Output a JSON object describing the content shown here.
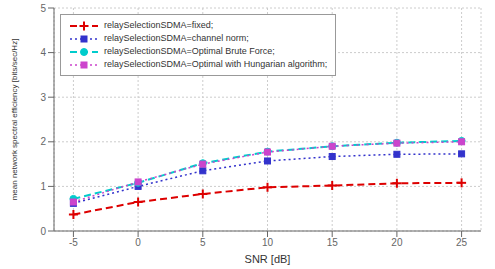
{
  "chart_data": {
    "type": "line",
    "x": [
      -5,
      0,
      5,
      10,
      15,
      20,
      25
    ],
    "xlabel": "SNR [dB]",
    "ylabel": "mean network spectral efficiency [bits/sec/Hz]",
    "xlim": [
      -6.5,
      26.5
    ],
    "xticks": [
      -5,
      0,
      5,
      10,
      15,
      20,
      25
    ],
    "ylim": [
      0,
      5
    ],
    "yticks": [
      0,
      1,
      2,
      3,
      4,
      5
    ],
    "grid": true,
    "legend": "upper left",
    "series": [
      {
        "name": "relaySelectionSDMA=fixed;",
        "color": "#dd0000",
        "marker": "plus",
        "line_style": "dashed",
        "values": [
          0.37,
          0.65,
          0.83,
          0.98,
          1.02,
          1.07,
          1.08
        ]
      },
      {
        "name": "relaySelectionSDMA=channel norm;",
        "color": "#3333cc",
        "marker": "square",
        "line_style": "dotted",
        "values": [
          0.62,
          1.0,
          1.35,
          1.57,
          1.67,
          1.72,
          1.73
        ]
      },
      {
        "name": "relaySelectionSDMA=Optimal Brute Force;",
        "color": "#00cccc",
        "marker": "circle",
        "line_style": "dashed",
        "values": [
          0.72,
          1.08,
          1.52,
          1.78,
          1.9,
          1.98,
          2.02
        ]
      },
      {
        "name": "relaySelectionSDMA=Optimal with Hungarian algorithm;",
        "color": "#cc44cc",
        "marker": "square",
        "line_style": "dotted",
        "values": [
          0.65,
          1.1,
          1.5,
          1.77,
          1.9,
          1.97,
          2.0
        ]
      }
    ]
  }
}
